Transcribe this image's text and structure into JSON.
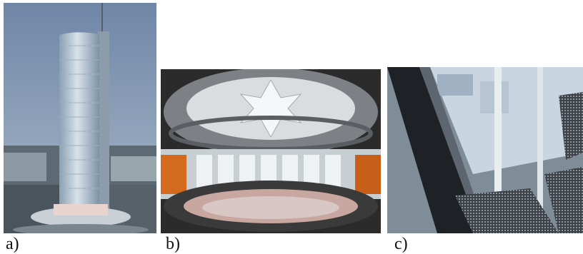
{
  "figure": {
    "panels": [
      {
        "label": "a)"
      },
      {
        "label": "b)"
      },
      {
        "label": "c)"
      }
    ]
  },
  "colors": {
    "sky": "#7f96b4",
    "glass": "#c9d6e2",
    "ceiling": "#d9dde0",
    "wall_orange": "#d36a1e",
    "metal": "#a9b4bc"
  }
}
